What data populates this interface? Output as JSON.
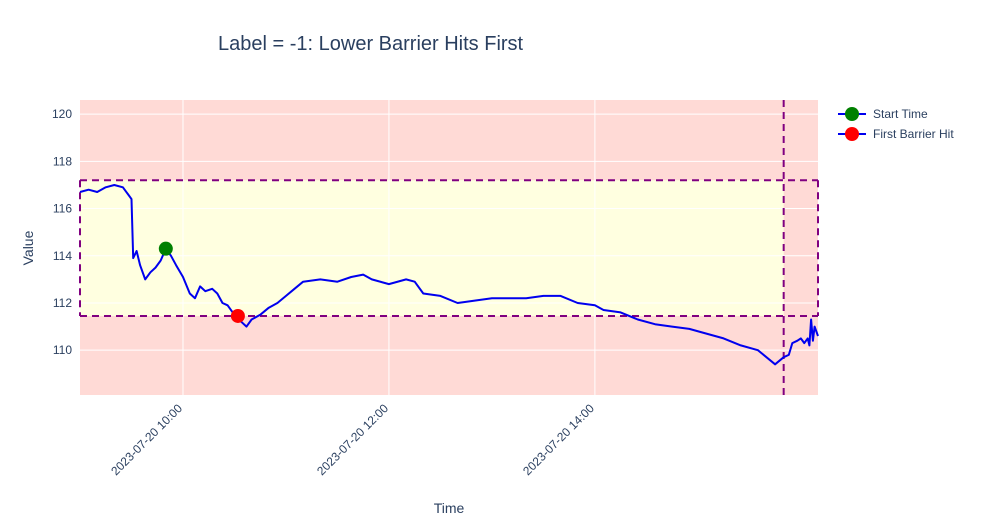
{
  "chart_data": {
    "type": "line",
    "title": "Label = -1: Lower Barrier Hits First",
    "xlabel": "Time",
    "ylabel": "Value",
    "xlim": [
      "2023-07-20 09:00",
      "2023-07-20 16:10"
    ],
    "ylim": [
      108.1,
      120.6
    ],
    "x_ticks": [
      "2023-07-20 10:00",
      "2023-07-20 12:00",
      "2023-07-20 14:00"
    ],
    "y_ticks": [
      110,
      112,
      114,
      116,
      118,
      120
    ],
    "grid": true,
    "legend_position": "top-right",
    "upper_barrier": 117.2,
    "lower_barrier": 111.45,
    "vertical_barrier_time": "2023-07-20 15:50",
    "colors": {
      "price_line": "#0000ee",
      "barrier_lines": "#800080",
      "outside_band": "#ffdad6",
      "inside_band": "#ffffe0",
      "grid": "#ffffff",
      "start_marker": "#008000",
      "hit_marker": "#ff0000"
    },
    "series": [
      {
        "name": "Price",
        "show_in_legend": false,
        "points": [
          [
            "2023-07-20 09:00",
            116.7
          ],
          [
            "2023-07-20 09:05",
            116.8
          ],
          [
            "2023-07-20 09:10",
            116.7
          ],
          [
            "2023-07-20 09:15",
            116.9
          ],
          [
            "2023-07-20 09:20",
            117.0
          ],
          [
            "2023-07-20 09:25",
            116.9
          ],
          [
            "2023-07-20 09:28",
            116.6
          ],
          [
            "2023-07-20 09:30",
            116.4
          ],
          [
            "2023-07-20 09:31",
            113.9
          ],
          [
            "2023-07-20 09:33",
            114.2
          ],
          [
            "2023-07-20 09:35",
            113.6
          ],
          [
            "2023-07-20 09:38",
            113.0
          ],
          [
            "2023-07-20 09:41",
            113.3
          ],
          [
            "2023-07-20 09:44",
            113.5
          ],
          [
            "2023-07-20 09:47",
            113.8
          ],
          [
            "2023-07-20 09:50",
            114.3
          ],
          [
            "2023-07-20 09:53",
            114.0
          ],
          [
            "2023-07-20 09:56",
            113.6
          ],
          [
            "2023-07-20 10:00",
            113.1
          ],
          [
            "2023-07-20 10:04",
            112.4
          ],
          [
            "2023-07-20 10:07",
            112.2
          ],
          [
            "2023-07-20 10:10",
            112.7
          ],
          [
            "2023-07-20 10:13",
            112.5
          ],
          [
            "2023-07-20 10:17",
            112.6
          ],
          [
            "2023-07-20 10:20",
            112.4
          ],
          [
            "2023-07-20 10:23",
            112.0
          ],
          [
            "2023-07-20 10:26",
            111.9
          ],
          [
            "2023-07-20 10:29",
            111.6
          ],
          [
            "2023-07-20 10:32",
            111.45
          ],
          [
            "2023-07-20 10:34",
            111.2
          ],
          [
            "2023-07-20 10:37",
            111.0
          ],
          [
            "2023-07-20 10:40",
            111.3
          ],
          [
            "2023-07-20 10:45",
            111.5
          ],
          [
            "2023-07-20 10:50",
            111.8
          ],
          [
            "2023-07-20 10:55",
            112.0
          ],
          [
            "2023-07-20 11:00",
            112.3
          ],
          [
            "2023-07-20 11:05",
            112.6
          ],
          [
            "2023-07-20 11:10",
            112.9
          ],
          [
            "2023-07-20 11:20",
            113.0
          ],
          [
            "2023-07-20 11:30",
            112.9
          ],
          [
            "2023-07-20 11:38",
            113.1
          ],
          [
            "2023-07-20 11:45",
            113.2
          ],
          [
            "2023-07-20 11:50",
            113.0
          ],
          [
            "2023-07-20 12:00",
            112.8
          ],
          [
            "2023-07-20 12:10",
            113.0
          ],
          [
            "2023-07-20 12:15",
            112.9
          ],
          [
            "2023-07-20 12:20",
            112.4
          ],
          [
            "2023-07-20 12:30",
            112.3
          ],
          [
            "2023-07-20 12:40",
            112.0
          ],
          [
            "2023-07-20 12:50",
            112.1
          ],
          [
            "2023-07-20 13:00",
            112.2
          ],
          [
            "2023-07-20 13:10",
            112.2
          ],
          [
            "2023-07-20 13:20",
            112.2
          ],
          [
            "2023-07-20 13:30",
            112.3
          ],
          [
            "2023-07-20 13:40",
            112.3
          ],
          [
            "2023-07-20 13:50",
            112.0
          ],
          [
            "2023-07-20 14:00",
            111.9
          ],
          [
            "2023-07-20 14:05",
            111.7
          ],
          [
            "2023-07-20 14:15",
            111.6
          ],
          [
            "2023-07-20 14:25",
            111.3
          ],
          [
            "2023-07-20 14:35",
            111.1
          ],
          [
            "2023-07-20 14:45",
            111.0
          ],
          [
            "2023-07-20 14:55",
            110.9
          ],
          [
            "2023-07-20 15:05",
            110.7
          ],
          [
            "2023-07-20 15:15",
            110.5
          ],
          [
            "2023-07-20 15:25",
            110.2
          ],
          [
            "2023-07-20 15:35",
            110.0
          ],
          [
            "2023-07-20 15:45",
            109.4
          ],
          [
            "2023-07-20 15:50",
            109.7
          ],
          [
            "2023-07-20 15:53",
            109.8
          ],
          [
            "2023-07-20 15:55",
            110.3
          ],
          [
            "2023-07-20 15:58",
            110.4
          ],
          [
            "2023-07-20 16:00",
            110.5
          ],
          [
            "2023-07-20 16:02",
            110.3
          ],
          [
            "2023-07-20 16:04",
            110.5
          ],
          [
            "2023-07-20 16:05",
            110.2
          ],
          [
            "2023-07-20 16:06",
            111.3
          ],
          [
            "2023-07-20 16:07",
            110.4
          ],
          [
            "2023-07-20 16:08",
            111.0
          ],
          [
            "2023-07-20 16:10",
            110.6
          ]
        ]
      },
      {
        "name": "Start Time",
        "marker": "circle",
        "points": [
          [
            "2023-07-20 09:50",
            114.3
          ]
        ]
      },
      {
        "name": "First Barrier Hit",
        "marker": "circle",
        "points": [
          [
            "2023-07-20 10:32",
            111.45
          ]
        ]
      }
    ]
  }
}
